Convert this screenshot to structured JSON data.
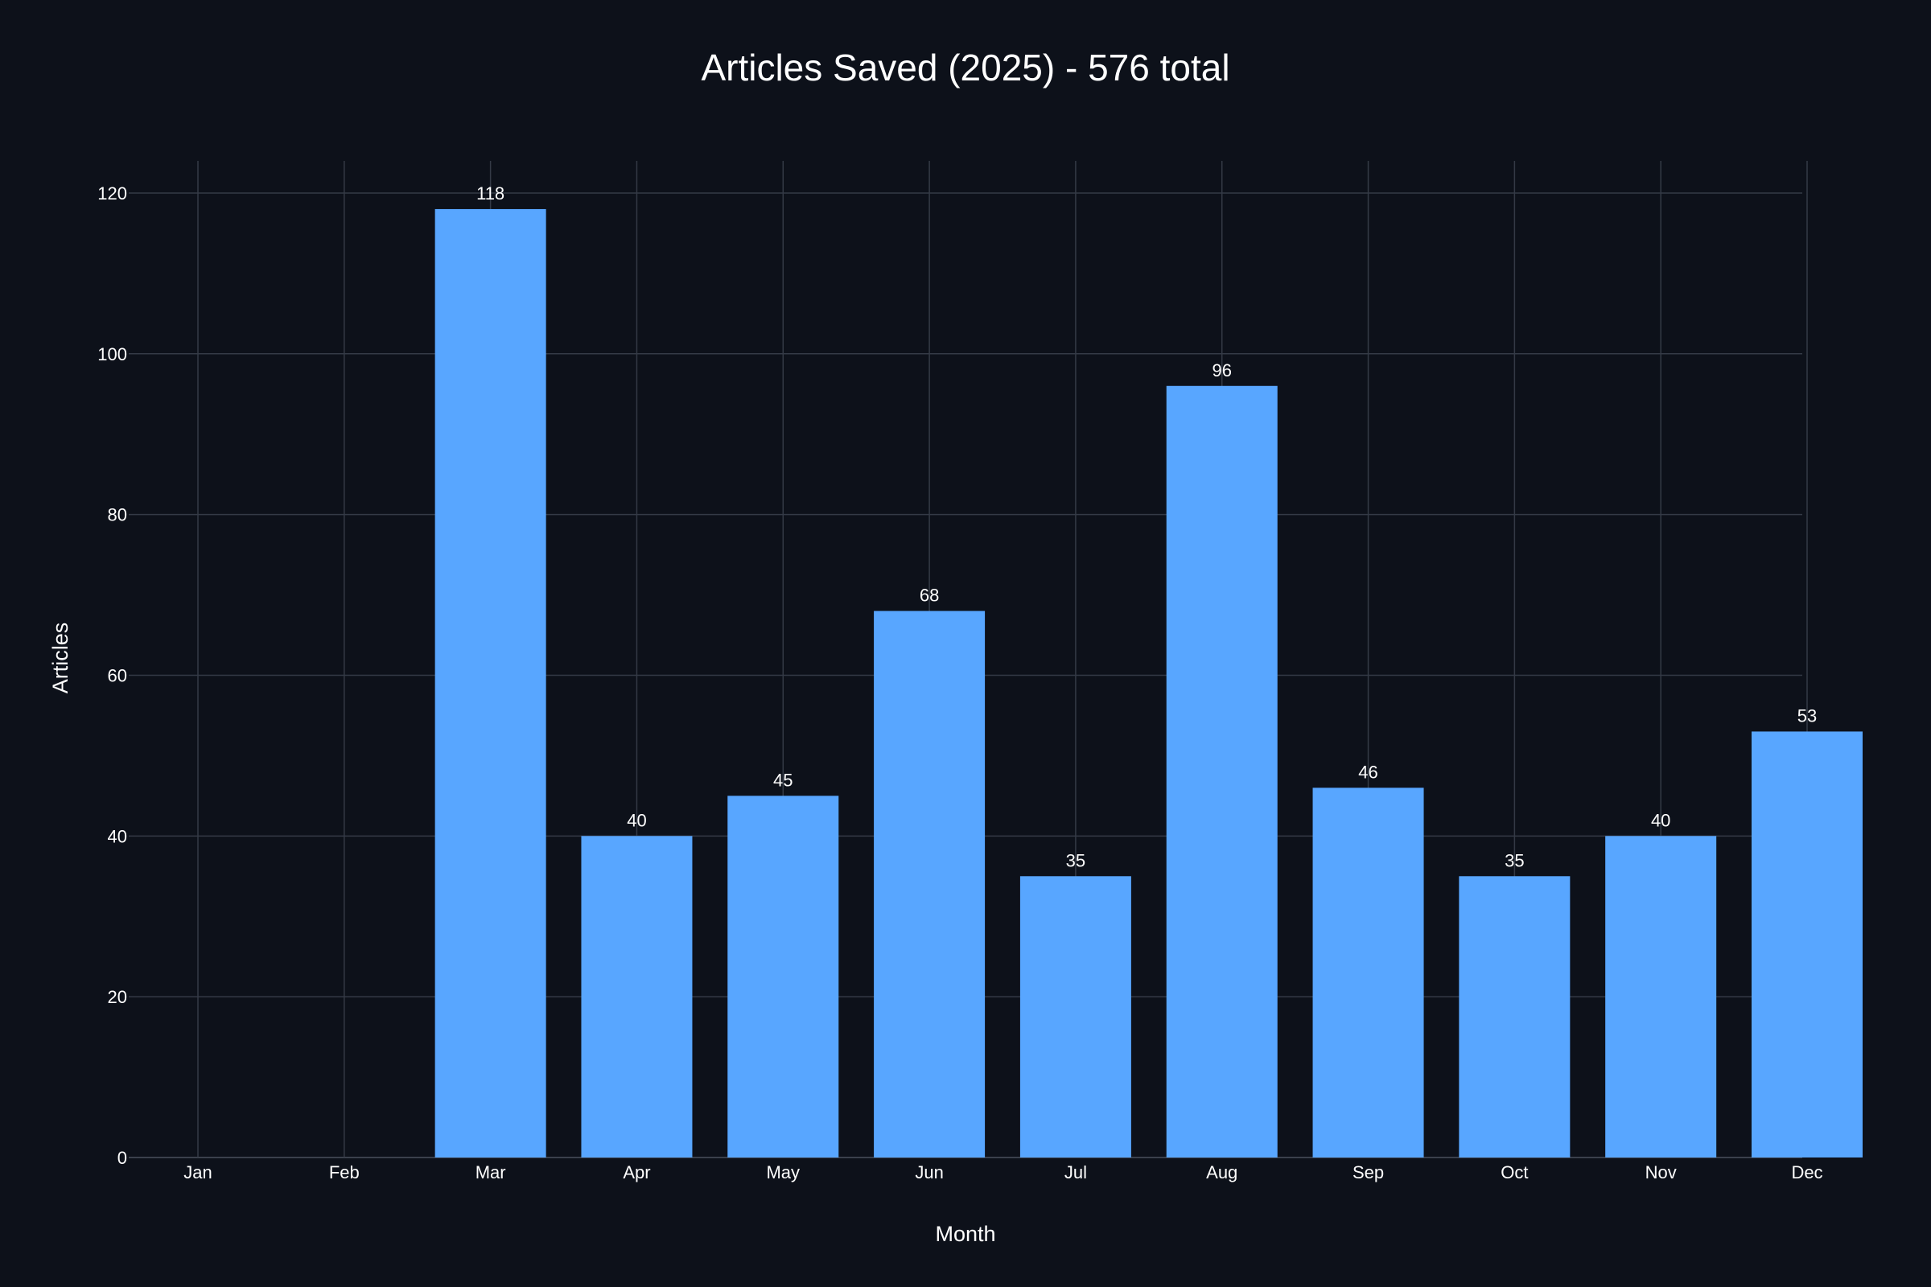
{
  "chart_data": {
    "type": "bar",
    "title": "Articles Saved (2025) - 576 total",
    "xlabel": "Month",
    "ylabel": "Articles",
    "categories": [
      "Jan",
      "Feb",
      "Mar",
      "Apr",
      "May",
      "Jun",
      "Jul",
      "Aug",
      "Sep",
      "Oct",
      "Nov",
      "Dec"
    ],
    "values": [
      0,
      0,
      118,
      40,
      45,
      68,
      35,
      96,
      46,
      35,
      40,
      53
    ],
    "data_labels": [
      "",
      "",
      "118",
      "40",
      "45",
      "68",
      "35",
      "96",
      "46",
      "35",
      "40",
      "53"
    ],
    "yticks": [
      0,
      20,
      40,
      60,
      80,
      100,
      120
    ],
    "ylim": [
      0,
      124
    ],
    "grid": true,
    "legend": "none",
    "colors": {
      "background": "#0d111a",
      "bar": "#58a6ff",
      "grid": "#343a46",
      "text": "#ffffff"
    }
  }
}
